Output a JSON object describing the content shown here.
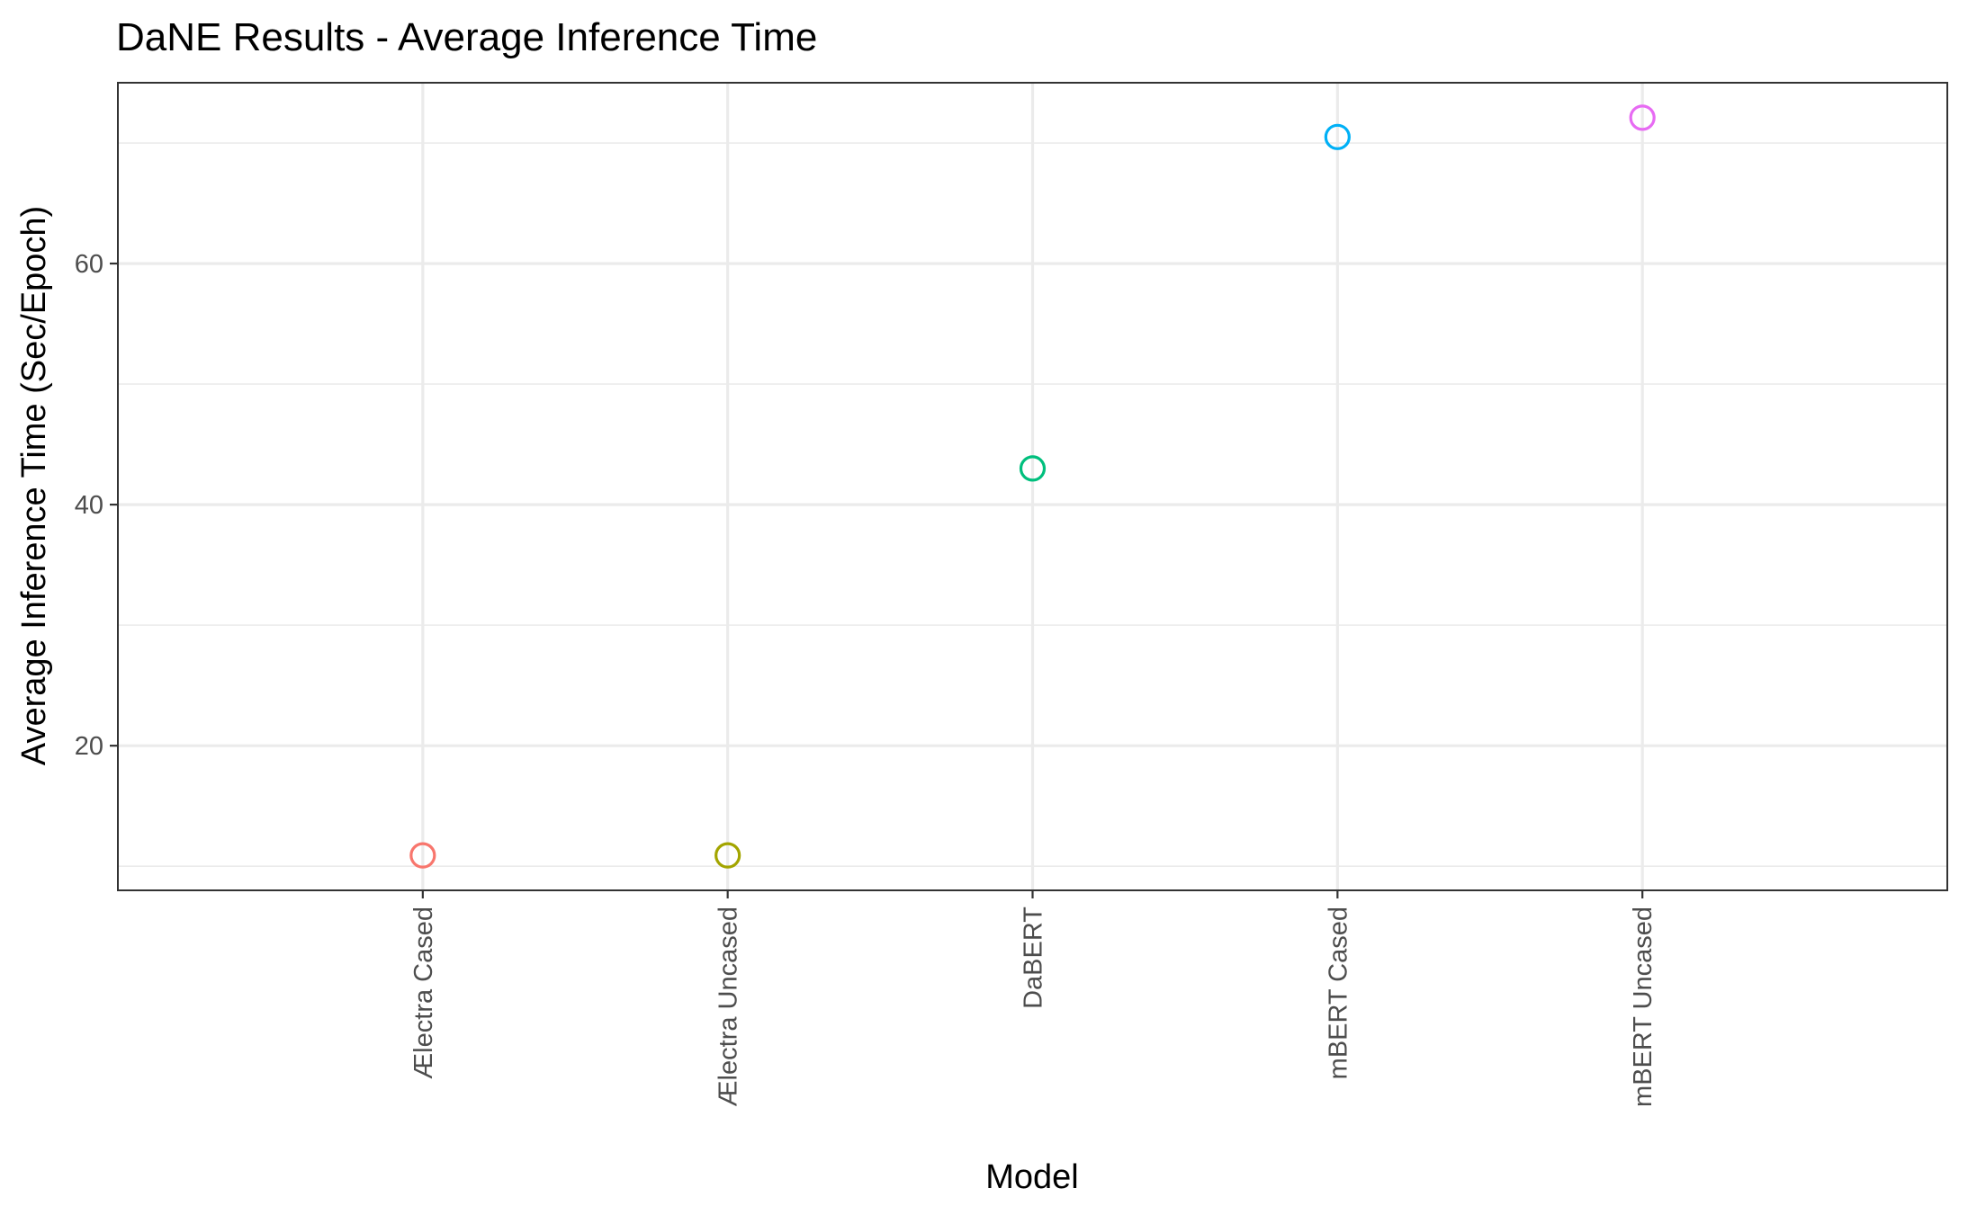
{
  "chart_data": {
    "type": "scatter",
    "title": "DaNE Results - Average Inference Time",
    "xlabel": "Model",
    "ylabel": "Average Inference Time (Sec/Epoch)",
    "categories": [
      "Ælectra Cased",
      "Ælectra Uncased",
      "DaBERT",
      "mBERT Cased",
      "mBERT Uncased"
    ],
    "values": [
      10.9,
      10.9,
      43.0,
      70.5,
      72.1
    ],
    "colors": [
      "#F8766D",
      "#A3A500",
      "#00BF7D",
      "#00B0F6",
      "#E76BF3"
    ],
    "ylim": [
      8,
      75
    ],
    "yticks": [
      20,
      40,
      60
    ],
    "yticks_minor": [
      10,
      30,
      50,
      70
    ],
    "grid": true,
    "legend": "none",
    "x_tick_rotation": -90
  }
}
